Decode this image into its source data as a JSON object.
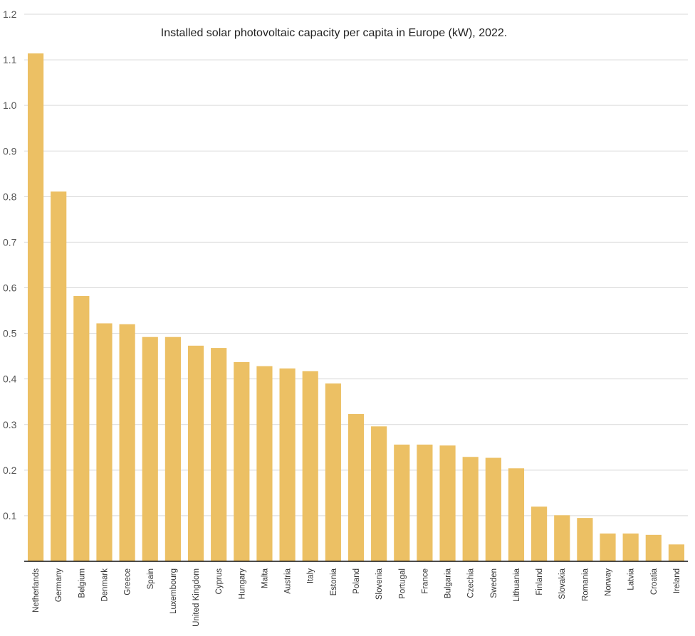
{
  "chart_data": {
    "type": "bar",
    "title": "Installed solar photovoltaic capacity per capita in Europe (kW), 2022.",
    "xlabel": "",
    "ylabel": "",
    "ylim": [
      0,
      1.2
    ],
    "yticks": [
      0.1,
      0.2,
      0.3,
      0.4,
      0.5,
      0.6,
      0.7,
      0.8,
      0.9,
      1.0,
      1.1,
      1.2
    ],
    "grid": true,
    "bar_color": "#ecc064",
    "categories": [
      "Netherlands",
      "Germany",
      "Belgium",
      "Denmark",
      "Greece",
      "Spain",
      "Luxembourg",
      "United Kingdom",
      "Cyprus",
      "Hungary",
      "Malta",
      "Austria",
      "Italy",
      "Estonia",
      "Poland",
      "Slovenia",
      "Portugal",
      "France",
      "Bulgaria",
      "Czechia",
      "Sweden",
      "Lithuania",
      "Finland",
      "Slovakia",
      "Romania",
      "Norway",
      "Latvia",
      "Croatia",
      "Ireland"
    ],
    "values": [
      1.114,
      0.811,
      0.582,
      0.522,
      0.52,
      0.492,
      0.492,
      0.473,
      0.468,
      0.437,
      0.428,
      0.423,
      0.417,
      0.39,
      0.323,
      0.296,
      0.256,
      0.256,
      0.254,
      0.229,
      0.227,
      0.204,
      0.12,
      0.101,
      0.095,
      0.061,
      0.061,
      0.058,
      0.037
    ]
  }
}
